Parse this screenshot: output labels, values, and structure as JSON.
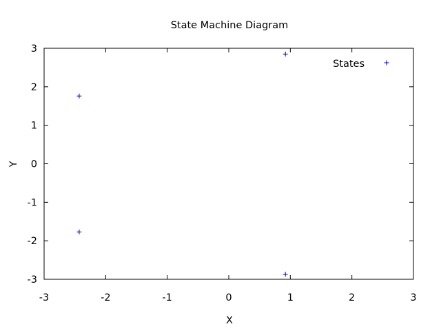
{
  "chart_data": {
    "type": "scatter",
    "title": "State Machine Diagram",
    "xlabel": "X",
    "ylabel": "Y",
    "xlim": [
      -3,
      3
    ],
    "ylim": [
      -3,
      3
    ],
    "xticks": [
      -3,
      -2,
      -1,
      0,
      1,
      2,
      3
    ],
    "yticks": [
      -3,
      -2,
      -1,
      0,
      1,
      2,
      3
    ],
    "grid": false,
    "legend_position": "top-right",
    "series": [
      {
        "name": "States",
        "color": "#0000a0",
        "marker": "plus",
        "points": [
          {
            "x": 0.92,
            "y": 2.85
          },
          {
            "x": -2.43,
            "y": 1.76
          },
          {
            "x": -2.43,
            "y": -1.77
          },
          {
            "x": 0.92,
            "y": -2.87
          }
        ]
      }
    ]
  }
}
